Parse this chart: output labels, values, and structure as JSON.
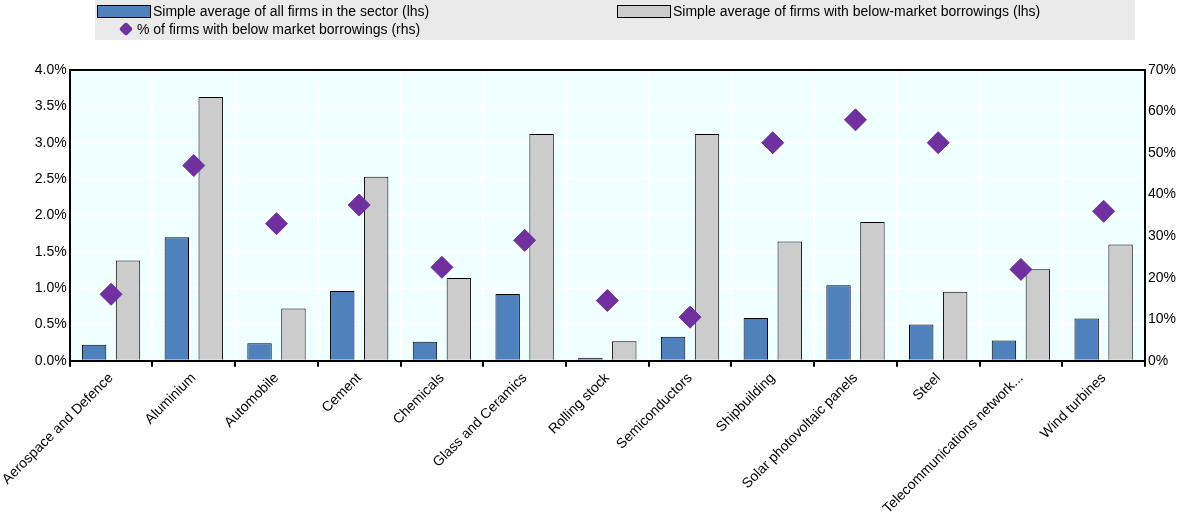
{
  "chart_data": {
    "type": "bar",
    "categories": [
      "Aerospace and Defence",
      "Aluminium",
      "Automobile",
      "Cement",
      "Chemicals",
      "Glass and Ceramics",
      "Rolling stock",
      "Semiconductors",
      "Shipbuilding",
      "Solar photovoltaic panels",
      "Steel",
      "Telecommunications network...",
      "Wind turbines"
    ],
    "series": [
      {
        "name": "Simple average of all firms in the sector (lhs)",
        "color": "#4f81bd",
        "values": [
          0.22,
          1.7,
          0.24,
          0.96,
          0.26,
          0.92,
          0.04,
          0.33,
          0.59,
          1.04,
          0.5,
          0.28,
          0.58
        ]
      },
      {
        "name": "Simple average of firms with below-market borrowings (lhs)",
        "color": "#cccccc",
        "values": [
          1.38,
          3.63,
          0.72,
          2.53,
          1.14,
          3.12,
          0.27,
          3.12,
          1.64,
          1.91,
          0.95,
          1.26,
          1.6
        ]
      },
      {
        "name": "% of firms with below market borrowings (rhs)",
        "type": "scatter",
        "axis": "y2",
        "marker": "diamond",
        "color": "#7030a0",
        "values": [
          16,
          47,
          33,
          37.5,
          22.5,
          29,
          14.5,
          10.5,
          52.5,
          58,
          52.5,
          22,
          36
        ]
      }
    ],
    "ylim": [
      0,
      4
    ],
    "yticks": [
      {
        "value": 0,
        "label": "0.0%"
      },
      {
        "value": 0.5,
        "label": "0.5%"
      },
      {
        "value": 1,
        "label": "1.0%"
      },
      {
        "value": 1.5,
        "label": "1.5%"
      },
      {
        "value": 2,
        "label": "2.0%"
      },
      {
        "value": 2.5,
        "label": "2.5%"
      },
      {
        "value": 3,
        "label": "3.0%"
      },
      {
        "value": 3.5,
        "label": "3.5%"
      },
      {
        "value": 4,
        "label": "4.0%"
      }
    ],
    "y2lim": [
      0,
      70
    ],
    "y2ticks": [
      {
        "value": 0,
        "label": "0%"
      },
      {
        "value": 10,
        "label": "10%"
      },
      {
        "value": 20,
        "label": "20%"
      },
      {
        "value": 30,
        "label": "30%"
      },
      {
        "value": 40,
        "label": "40%"
      },
      {
        "value": 50,
        "label": "50%"
      },
      {
        "value": 60,
        "label": "60%"
      },
      {
        "value": 70,
        "label": "70%"
      }
    ],
    "grid": true,
    "legend": "top"
  }
}
